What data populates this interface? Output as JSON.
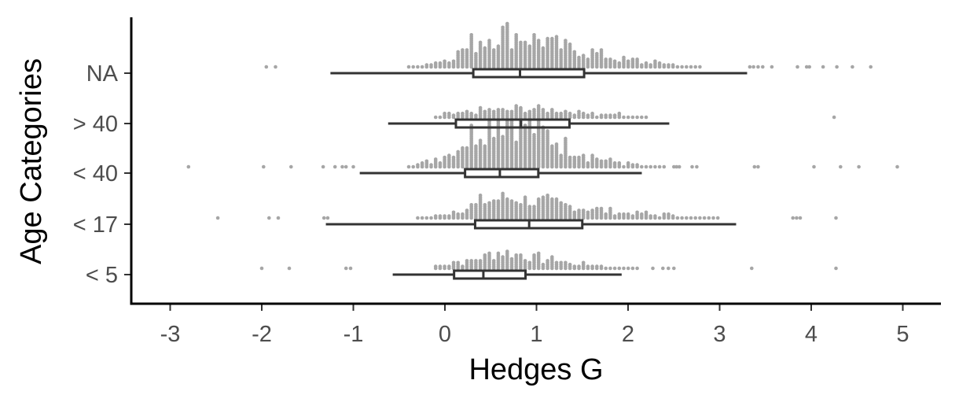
{
  "chart_data": {
    "type": "boxplot",
    "title": "",
    "xlabel": "Hedges G",
    "ylabel": "Age Categories",
    "xlim": [
      -3.4,
      5.4
    ],
    "x_ticks": [
      -3,
      -2,
      -1,
      0,
      1,
      2,
      3,
      4,
      5
    ],
    "x_tick_labels": [
      "-3",
      "-2",
      "-1",
      "0",
      "1",
      "2",
      "3",
      "4",
      "5"
    ],
    "categories": [
      "< 5",
      "< 17",
      "< 40",
      "> 40",
      "NA"
    ],
    "grid": false,
    "legend": "none",
    "colors": {
      "points": "#a6a6a6",
      "box": "#333333",
      "axis": "#000000"
    },
    "boxes": [
      {
        "category": "< 5",
        "whisker_low": -0.57,
        "q1": 0.1,
        "median": 0.42,
        "q3": 0.88,
        "whisker_high": 1.93
      },
      {
        "category": "< 17",
        "whisker_low": -1.3,
        "q1": 0.33,
        "median": 0.92,
        "q3": 1.5,
        "whisker_high": 3.18
      },
      {
        "category": "< 40",
        "whisker_low": -0.93,
        "q1": 0.22,
        "median": 0.6,
        "q3": 1.02,
        "whisker_high": 2.15
      },
      {
        "category": "> 40",
        "whisker_low": -0.62,
        "q1": 0.12,
        "median": 0.83,
        "q3": 1.36,
        "whisker_high": 2.45
      },
      {
        "category": "NA",
        "whisker_low": -1.25,
        "q1": 0.31,
        "median": 0.82,
        "q3": 1.52,
        "whisker_high": 3.3
      }
    ],
    "outliers": [
      {
        "category": "< 5",
        "values": [
          -2.0,
          -1.7,
          -1.08,
          -1.03,
          2.27,
          2.38,
          2.44,
          2.5,
          3.35,
          4.27
        ]
      },
      {
        "category": "< 17",
        "values": [
          -2.48,
          -1.92,
          -1.82,
          -1.32,
          -1.28,
          3.8,
          3.84,
          3.88,
          4.27
        ]
      },
      {
        "category": "< 40",
        "values": [
          -2.8,
          -1.98,
          -1.68,
          -1.33,
          -1.2,
          -1.12,
          -1.08,
          -1.0,
          2.5,
          2.53,
          2.56,
          2.7,
          2.75,
          3.38,
          3.42,
          4.03,
          4.32,
          4.52,
          4.94
        ]
      },
      {
        "category": "> 40",
        "values": [
          4.25
        ]
      },
      {
        "category": "NA",
        "values": [
          -1.95,
          -1.85,
          3.33,
          3.37,
          3.42,
          3.47,
          3.57,
          3.85,
          3.95,
          3.98,
          4.13,
          4.28,
          4.45,
          4.65
        ]
      }
    ],
    "dot_density": [
      {
        "category": "< 5",
        "counts": [
          0,
          0,
          0,
          0,
          0,
          0,
          0,
          0,
          0,
          0,
          0,
          0,
          2,
          3,
          4,
          4,
          5,
          6,
          8,
          9,
          9,
          8,
          7,
          6,
          5,
          5,
          4,
          3,
          3,
          2,
          2,
          1,
          1,
          1,
          1,
          0,
          0,
          0,
          0,
          0,
          0,
          0,
          0,
          0,
          0,
          0
        ]
      },
      {
        "category": "< 17",
        "counts": [
          0,
          0,
          0,
          0,
          0,
          0,
          0,
          0,
          0,
          0,
          1,
          1,
          2,
          3,
          4,
          5,
          7,
          9,
          10,
          11,
          11,
          11,
          10,
          9,
          9,
          8,
          7,
          7,
          6,
          5,
          5,
          4,
          4,
          3,
          3,
          3,
          2,
          2,
          2,
          2,
          1,
          1,
          1,
          1,
          0,
          0
        ]
      },
      {
        "category": "< 40",
        "counts": [
          0,
          0,
          0,
          0,
          0,
          0,
          0,
          0,
          0,
          1,
          2,
          3,
          5,
          7,
          10,
          14,
          18,
          22,
          25,
          27,
          27,
          26,
          24,
          21,
          18,
          15,
          12,
          10,
          8,
          6,
          5,
          4,
          3,
          2,
          2,
          1,
          1,
          1,
          0,
          0,
          0,
          0,
          0,
          0,
          0,
          0
        ]
      },
      {
        "category": "> 40",
        "counts": [
          0,
          0,
          0,
          0,
          0,
          0,
          0,
          0,
          0,
          0,
          0,
          0,
          1,
          2,
          2,
          3,
          3,
          4,
          4,
          4,
          4,
          5,
          5,
          5,
          4,
          4,
          4,
          3,
          3,
          3,
          2,
          2,
          2,
          1,
          1,
          1,
          0,
          0,
          0,
          0,
          0,
          0,
          0,
          0,
          0,
          0
        ]
      },
      {
        "category": "NA",
        "counts": [
          0,
          0,
          0,
          0,
          0,
          0,
          0,
          0,
          0,
          1,
          1,
          2,
          3,
          5,
          7,
          10,
          13,
          15,
          17,
          18,
          18,
          17,
          16,
          15,
          14,
          12,
          11,
          10,
          9,
          8,
          7,
          6,
          5,
          4,
          4,
          3,
          3,
          2,
          2,
          1,
          1,
          1,
          0,
          0,
          0,
          0
        ]
      }
    ],
    "dot_density_x_range": [
      -1.3,
      3.2
    ]
  }
}
